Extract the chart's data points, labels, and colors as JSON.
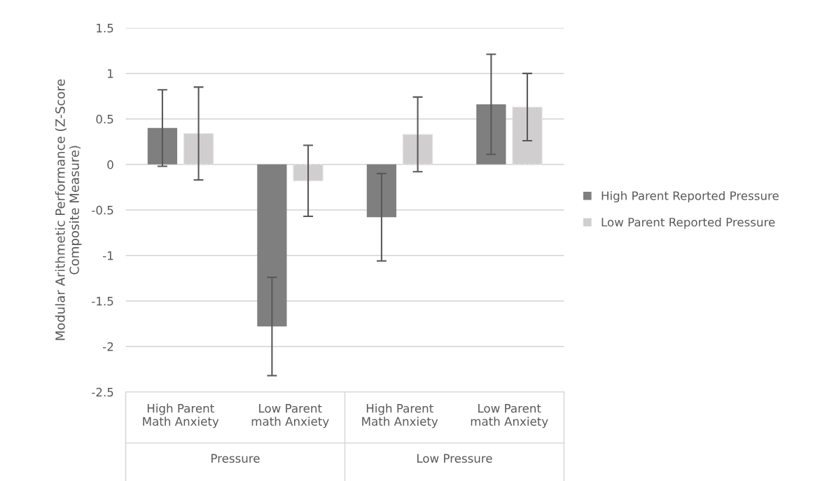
{
  "chart_data": {
    "type": "bar",
    "ylabel": "Modular Arithmetic Performance (Z-Score\nComposite Measure)",
    "categories": [
      "High Parent\nMath Anxiety",
      "Low Parent\nmath Anxiety",
      "High Parent\nMath Anxiety",
      "Low Parent\nmath Anxiety"
    ],
    "annotations": [
      "Pressure",
      "Low Pressure"
    ],
    "series": [
      {
        "name": "High Parent Reported Pressure",
        "color": "#7f7f7f",
        "values": [
          0.4,
          -1.78,
          -0.58,
          0.66
        ],
        "errors": [
          0.42,
          0.54,
          0.48,
          0.55
        ]
      },
      {
        "name": "Low Parent Reported Pressure",
        "color": "#d0cece",
        "values": [
          0.34,
          -0.18,
          0.33,
          0.63
        ],
        "errors": [
          0.51,
          0.39,
          0.41,
          0.37
        ]
      }
    ],
    "ylim": [
      -2.5,
      1.5
    ],
    "yticks": [
      {
        "value": -2.5,
        "label": "-2.5"
      },
      {
        "value": -2,
        "label": "-2"
      },
      {
        "value": -1.5,
        "label": "-1.5"
      },
      {
        "value": -1,
        "label": "-1"
      },
      {
        "value": -0.5,
        "label": "-0.5"
      },
      0,
      0.5,
      1,
      1.5
    ],
    "grid": "y",
    "legend": "right"
  }
}
